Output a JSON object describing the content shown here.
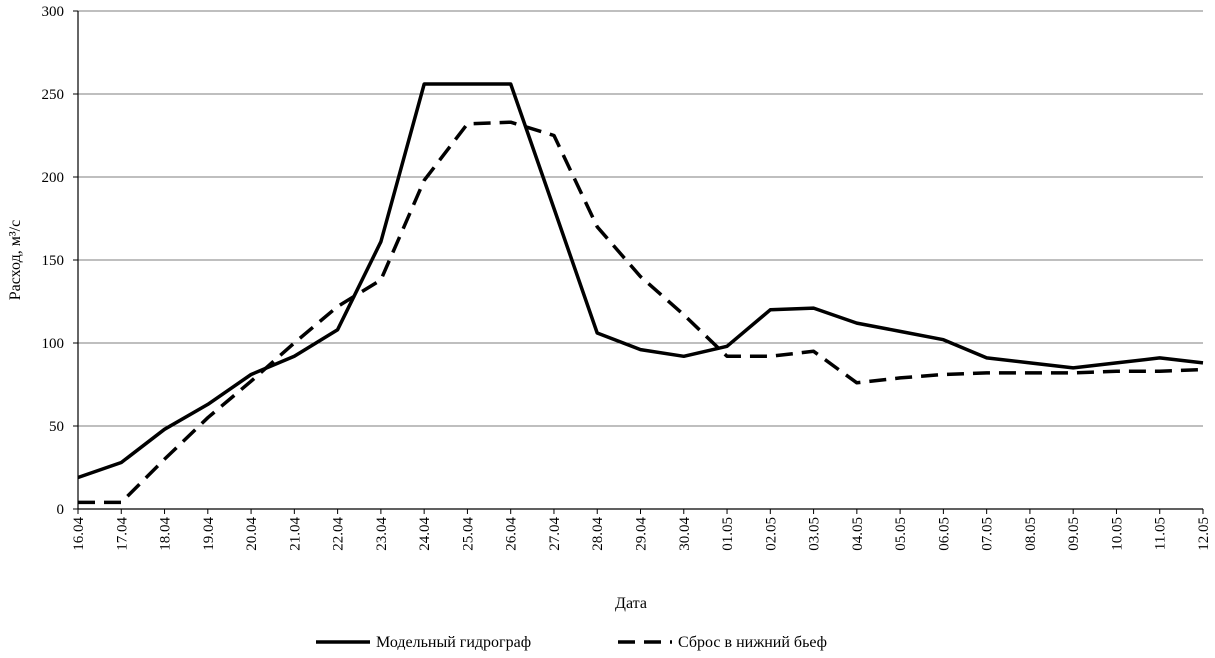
{
  "chart_data": {
    "type": "line",
    "title": "",
    "xlabel": "Дата",
    "ylabel": "Расход, м³/с",
    "ylim": [
      0,
      300
    ],
    "yticks": [
      0,
      50,
      100,
      150,
      200,
      250,
      300
    ],
    "grid": "horizontal",
    "legend_position": "bottom",
    "categories": [
      "16.04",
      "17.04",
      "18.04",
      "19.04",
      "20.04",
      "21.04",
      "22.04",
      "23.04",
      "24.04",
      "25.04",
      "26.04",
      "27.04",
      "28.04",
      "29.04",
      "30.04",
      "01.05",
      "02.05",
      "03.05",
      "04.05",
      "05.05",
      "06.05",
      "07.05",
      "08.05",
      "09.05",
      "10.05",
      "11.05",
      "12.05"
    ],
    "series": [
      {
        "name": "Модельный гидрограф",
        "style": "solid",
        "color": "#000000",
        "values": [
          19,
          28,
          48,
          63,
          81,
          92,
          108,
          161,
          256,
          256,
          256,
          181,
          106,
          96,
          92,
          98,
          120,
          121,
          112,
          107,
          102,
          91,
          88,
          85,
          88,
          91,
          88
        ]
      },
      {
        "name": "Сброс в нижний бьеф",
        "style": "dashed",
        "color": "#000000",
        "values": [
          4,
          4,
          30,
          55,
          77,
          100,
          122,
          138,
          198,
          232,
          233,
          225,
          170,
          140,
          117,
          92,
          92,
          95,
          76,
          79,
          81,
          82,
          82,
          82,
          83,
          83,
          84
        ]
      }
    ]
  }
}
